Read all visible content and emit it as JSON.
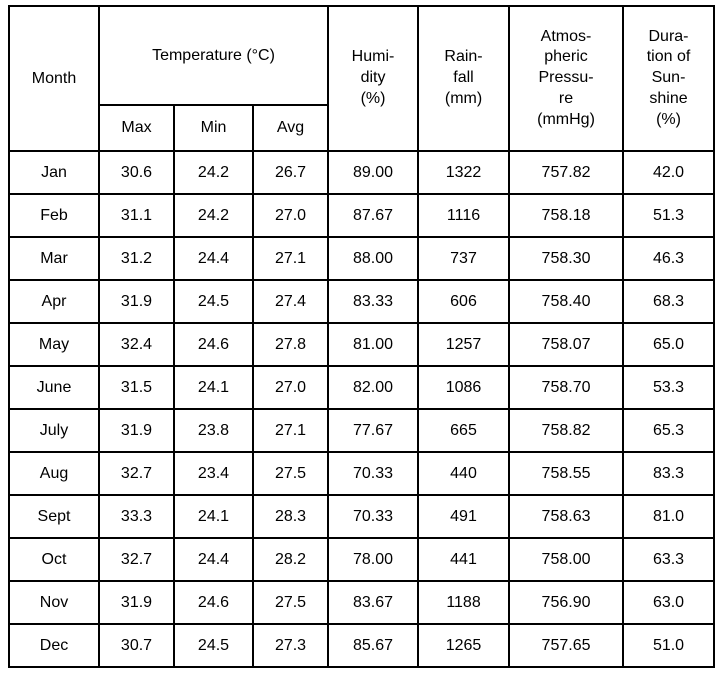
{
  "accent_colors": {
    "border": "#000000",
    "text": "#000000",
    "background": "#ffffff"
  },
  "chart_data": {
    "type": "table",
    "title": "Monthly climate data table",
    "headers": {
      "month": "Month",
      "temperature_group": "Temperature (°C)",
      "temp_sub": [
        "Max",
        "Min",
        "Avg"
      ],
      "humidity": "Humi-\ndity\n(%)",
      "rainfall": "Rain-\nfall\n(mm)",
      "pressure": "Atmos-\npheric\nPressu-\nre\n(mmHg)",
      "sunshine": "Dura-\ntion of\nSun-\nshine\n(%)"
    },
    "column_semantics": [
      "Month",
      "Temperature Max (°C)",
      "Temperature Min (°C)",
      "Temperature Avg (°C)",
      "Humidity (%)",
      "Rainfall (mm)",
      "Atmospheric Pressure (mmHg)",
      "Duration of Sunshine (%)"
    ],
    "rows": [
      [
        "Jan",
        "30.6",
        "24.2",
        "26.7",
        "89.00",
        "1322",
        "757.82",
        "42.0"
      ],
      [
        "Feb",
        "31.1",
        "24.2",
        "27.0",
        "87.67",
        "1116",
        "758.18",
        "51.3"
      ],
      [
        "Mar",
        "31.2",
        "24.4",
        "27.1",
        "88.00",
        "737",
        "758.30",
        "46.3"
      ],
      [
        "Apr",
        "31.9",
        "24.5",
        "27.4",
        "83.33",
        "606",
        "758.40",
        "68.3"
      ],
      [
        "May",
        "32.4",
        "24.6",
        "27.8",
        "81.00",
        "1257",
        "758.07",
        "65.0"
      ],
      [
        "June",
        "31.5",
        "24.1",
        "27.0",
        "82.00",
        "1086",
        "758.70",
        "53.3"
      ],
      [
        "July",
        "31.9",
        "23.8",
        "27.1",
        "77.67",
        "665",
        "758.82",
        "65.3"
      ],
      [
        "Aug",
        "32.7",
        "23.4",
        "27.5",
        "70.33",
        "440",
        "758.55",
        "83.3"
      ],
      [
        "Sept",
        "33.3",
        "24.1",
        "28.3",
        "70.33",
        "491",
        "758.63",
        "81.0"
      ],
      [
        "Oct",
        "32.7",
        "24.4",
        "28.2",
        "78.00",
        "441",
        "758.00",
        "63.3"
      ],
      [
        "Nov",
        "31.9",
        "24.6",
        "27.5",
        "83.67",
        "1188",
        "756.90",
        "63.0"
      ],
      [
        "Dec",
        "30.7",
        "24.5",
        "27.3",
        "85.67",
        "1265",
        "757.65",
        "51.0"
      ]
    ]
  }
}
